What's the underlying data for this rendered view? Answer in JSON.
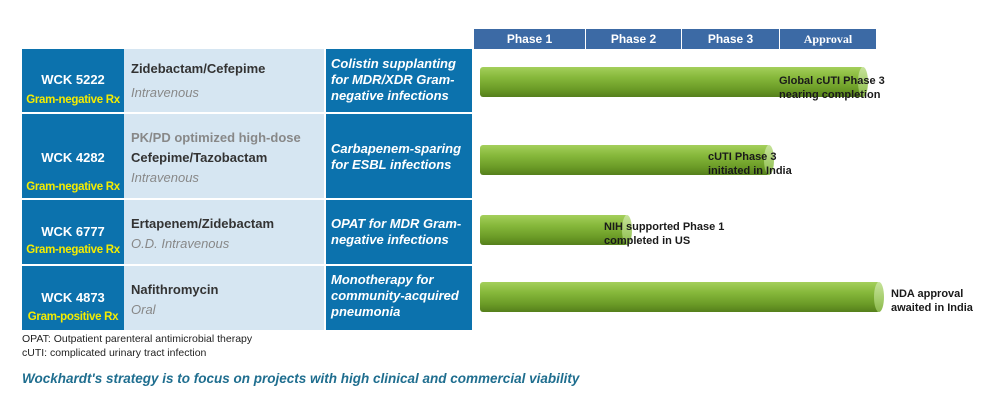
{
  "phases": [
    "Phase 1",
    "Phase 2",
    "Phase 3",
    "Approval"
  ],
  "rows": [
    {
      "code": "WCK 5222",
      "tag": "Gram-negative Rx",
      "drug_lines": [
        "Zidebactam/Cefepime"
      ],
      "route": "Intravenous",
      "indication": "Colistin supplanting for MDR/XDR Gram-negative infections",
      "progress": 0.96,
      "note": [
        "Global cUTI Phase 3",
        "nearing completion"
      ]
    },
    {
      "code": "WCK 4282",
      "tag": "Gram-negative Rx",
      "drug_pre": "PK/PD optimized  high-dose",
      "drug_lines": [
        "Cefepime/Tazobactam"
      ],
      "route": "Intravenous",
      "indication": "Carbapenem-sparing for ESBL infections",
      "progress": 0.73,
      "note": [
        "cUTI Phase 3",
        "initiated in India"
      ]
    },
    {
      "code": "WCK 6777",
      "tag": "Gram-negative Rx",
      "drug_lines": [
        "Ertapenem/Zidebactam"
      ],
      "route": "O.D. Intravenous",
      "indication": "OPAT for MDR Gram-negative infections",
      "progress": 0.38,
      "note": [
        "NIH supported Phase 1",
        "completed in US"
      ]
    },
    {
      "code": "WCK 4873",
      "tag": "Gram-positive Rx",
      "drug_lines": [
        "Nafithromycin"
      ],
      "route": "Oral",
      "indication": "Monotherapy for community-acquired pneumonia",
      "progress": 1.0,
      "note": [
        "NDA approval",
        "awaited in India"
      ]
    }
  ],
  "footnotes": [
    "OPAT: Outpatient parenteral antimicrobial therapy",
    "cUTI: complicated urinary tract infection"
  ],
  "strategy": "Wockhardt's strategy is to focus on projects with high clinical and commercial viability",
  "colors": {
    "header": "#3c6aa5",
    "code_cell": "#0c72ad",
    "drug_cell": "#d6e6f2",
    "tag": "#f5ec00",
    "bar": "#86b83b",
    "strategy": "#1f6e8f"
  }
}
